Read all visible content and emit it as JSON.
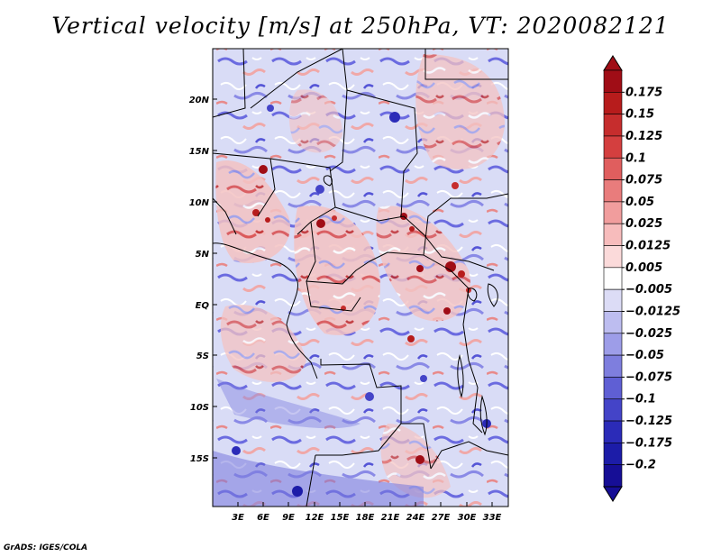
{
  "title": "Vertical velocity [m/s] at 250hPa, VT: 2020082121",
  "credit": "GrADS: IGES/COLA",
  "map": {
    "lat_labels": [
      "20N",
      "15N",
      "10N",
      "5N",
      "EQ",
      "5S",
      "10S",
      "15S"
    ],
    "lon_labels": [
      "3E",
      "6E",
      "9E",
      "12E",
      "15E",
      "18E",
      "21E",
      "24E",
      "27E",
      "30E",
      "33E"
    ],
    "lat_range": [
      -19.5,
      24.5
    ],
    "lon_range": [
      0,
      35
    ]
  },
  "colorbar": {
    "labels": [
      "0.175",
      "0.15",
      "0.125",
      "0.1",
      "0.075",
      "0.05",
      "0.025",
      "0.0125",
      "0.005",
      "−0.005",
      "−0.0125",
      "−0.025",
      "−0.05",
      "−0.075",
      "−0.1",
      "−0.125",
      "−0.175",
      "−0.2"
    ],
    "colors": [
      "#a00d16",
      "#b71c1c",
      "#c62d2d",
      "#d43f3f",
      "#e05e5e",
      "#e97c7c",
      "#f19d9d",
      "#f7bcbc",
      "#fbdada",
      "#ffffff",
      "#dcdcf6",
      "#bdbdf0",
      "#9d9de8",
      "#7e7ede",
      "#5f5fd4",
      "#4444c8",
      "#2b2bb8",
      "#1c1ca8",
      "#160e96"
    ]
  }
}
